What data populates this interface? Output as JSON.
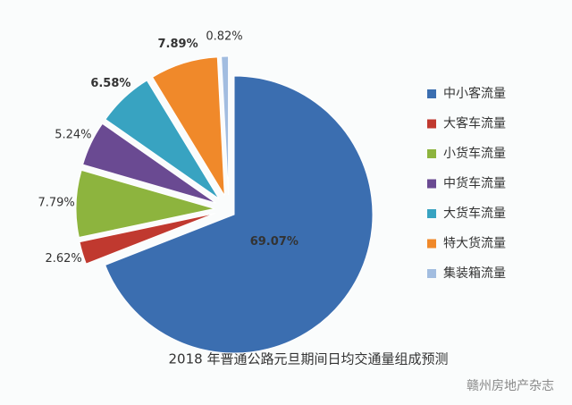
{
  "chart_data": {
    "type": "pie",
    "title": "2018 年普通公路元旦期间日均交通量组成预测",
    "categories": [
      "中小客流量",
      "大客车流量",
      "小货车流量",
      "中货车流量",
      "大货车流量",
      "特大货流量",
      "集装箱流量"
    ],
    "values": [
      69.07,
      2.62,
      7.79,
      5.24,
      6.58,
      7.89,
      0.82
    ],
    "value_labels": [
      "69.07%",
      "2.62%",
      "7.79%",
      "5.24%",
      "6.58%",
      "7.89%",
      "0.82%"
    ],
    "colors": [
      "#3b6eb0",
      "#c0392f",
      "#8db43e",
      "#6a4a92",
      "#38a3c1",
      "#f0892a",
      "#a2bde0"
    ],
    "legend": "right"
  },
  "watermark": "赣州房地产杂志"
}
